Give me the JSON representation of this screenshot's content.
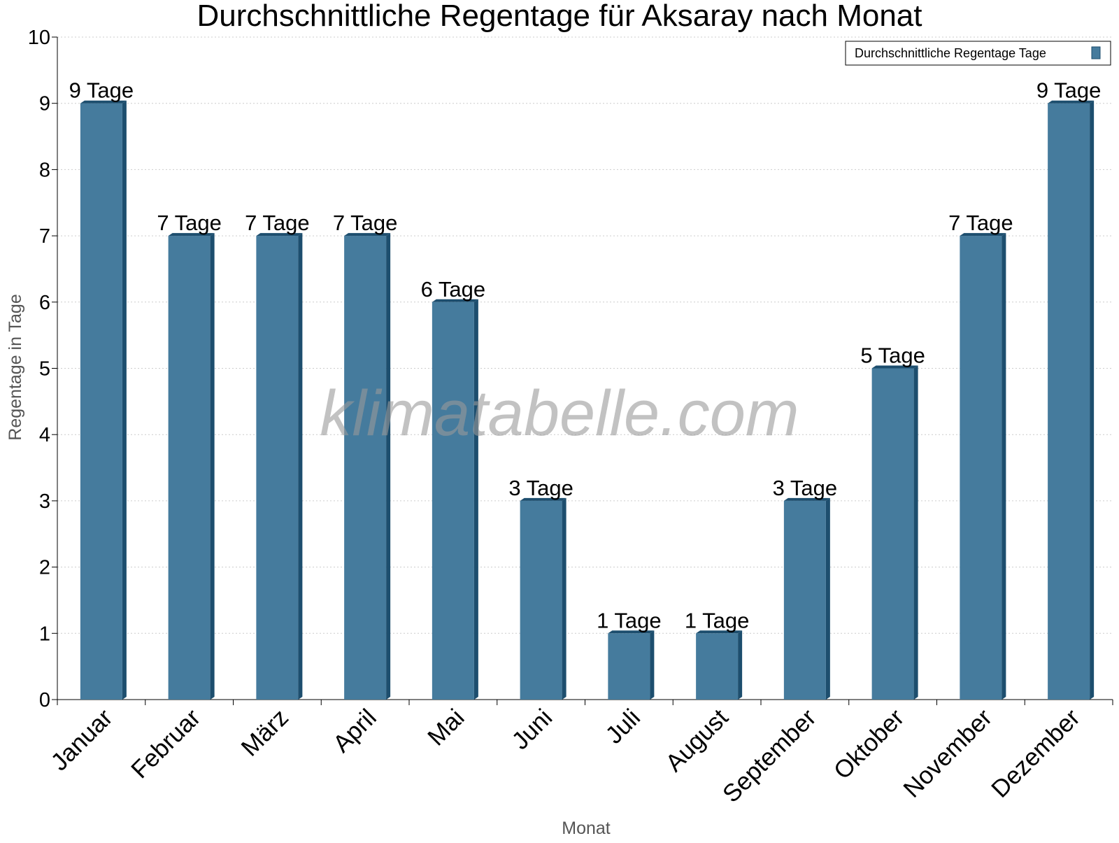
{
  "chart_data": {
    "type": "bar",
    "title": "Durchschnittliche Regentage für Aksaray nach Monat",
    "xlabel": "Monat",
    "ylabel": "Regentage in Tage",
    "ylim": [
      0,
      10
    ],
    "yticks": [
      0,
      1,
      2,
      3,
      4,
      5,
      6,
      7,
      8,
      9,
      10
    ],
    "categories": [
      "Januar",
      "Februar",
      "März",
      "April",
      "Mai",
      "Juni",
      "Juli",
      "August",
      "September",
      "Oktober",
      "November",
      "Dezember"
    ],
    "series": [
      {
        "name": "Durchschnittliche Regentage Tage",
        "values": [
          9,
          7,
          7,
          7,
          6,
          3,
          1,
          1,
          3,
          5,
          7,
          9
        ],
        "labels": [
          "9 Tage",
          "7 Tage",
          "7 Tage",
          "7 Tage",
          "6 Tage",
          "3 Tage",
          "1 Tage",
          "1 Tage",
          "3 Tage",
          "5 Tage",
          "7 Tage",
          "9 Tage"
        ]
      }
    ],
    "legend_position": "top-right",
    "grid": true,
    "watermark": "klimatabelle.com",
    "colors": {
      "bar": "#457b9d",
      "bar_side": "#1d4e6e",
      "grid": "#cccccc"
    }
  }
}
